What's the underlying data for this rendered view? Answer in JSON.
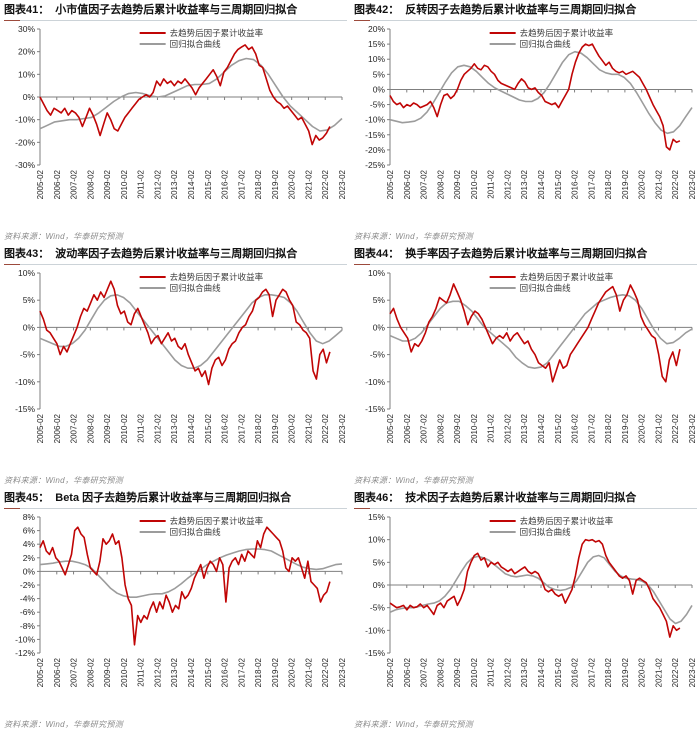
{
  "page": {
    "background": "#ffffff"
  },
  "colors": {
    "series_red": "#c00505",
    "fit_gray": "#9c9c9c",
    "axis_gray": "#7f7f7f",
    "tick_text": "#262626",
    "title_text": "#111111",
    "source_text": "#8a8a8a"
  },
  "legend": {
    "series_label": "去趋势后因子累计收益率",
    "fit_label": "回归拟合曲线"
  },
  "source_label": "资料来源：Wind，华泰研究预测",
  "x_labels": [
    "2005-02",
    "2006-02",
    "2007-02",
    "2008-02",
    "2009-02",
    "2010-02",
    "2011-02",
    "2012-02",
    "2013-02",
    "2014-02",
    "2015-02",
    "2016-02",
    "2017-02",
    "2018-02",
    "2019-02",
    "2020-02",
    "2021-02",
    "2022-02",
    "2023-02"
  ],
  "chart_data": [
    {
      "type": "line",
      "figure_label": "图表41：",
      "title": "小市值因子去趋势后累计收益率与三周期回归拟合",
      "ylim": [
        -30,
        30
      ],
      "yticks": [
        30,
        20,
        10,
        0,
        -10,
        -20,
        -30
      ],
      "x_range": [
        "2005-02",
        "2023-02"
      ],
      "grid": false,
      "legend_position": "top-center",
      "series": [
        {
          "name": "去趋势后因子累计收益率",
          "color_key": "series_red",
          "x_end": 0.96,
          "values": [
            0,
            -3,
            -6,
            -8,
            -5,
            -6,
            -7,
            -5,
            -8,
            -6,
            -7,
            -9,
            -13,
            -9,
            -5,
            -8,
            -12,
            -17,
            -12,
            -7,
            -10,
            -14,
            -15,
            -12,
            -9,
            -7,
            -5,
            -3,
            -1,
            0,
            1,
            0,
            2,
            7,
            5,
            8,
            6,
            7,
            5,
            7,
            6,
            8,
            6,
            4,
            1,
            4,
            6,
            8,
            10,
            12,
            9,
            5,
            11,
            13,
            16,
            19,
            21,
            22,
            23,
            21,
            22,
            19,
            14,
            13,
            8,
            3,
            0,
            -2,
            -3,
            -5,
            -4,
            -6,
            -8,
            -10,
            -9,
            -12,
            -15,
            -21,
            -17,
            -19,
            -18,
            -16,
            -13
          ]
        },
        {
          "name": "回归拟合曲线",
          "color_key": "fit_gray",
          "x_end": 1.0,
          "values": [
            -14,
            -12.5,
            -11,
            -10.5,
            -10,
            -10,
            -9.5,
            -9,
            -7,
            -4.5,
            -2,
            0,
            1.5,
            2,
            1.5,
            0.5,
            0,
            0.5,
            2,
            3.5,
            5,
            5.5,
            5.5,
            6,
            8,
            11,
            14,
            16,
            17,
            16.5,
            14,
            10,
            5,
            0,
            -4,
            -7,
            -10,
            -13,
            -15,
            -14.5,
            -12.5,
            -9.5
          ]
        }
      ]
    },
    {
      "type": "line",
      "figure_label": "图表42：",
      "title": "反转因子去趋势后累计收益率与三周期回归拟合",
      "ylim": [
        -25,
        20
      ],
      "yticks": [
        20,
        15,
        10,
        5,
        0,
        -5,
        -10,
        -15,
        -20,
        -25
      ],
      "x_range": [
        "2005-02",
        "2023-02"
      ],
      "grid": false,
      "legend_position": "top-center",
      "series": [
        {
          "name": "去趋势后因子累计收益率",
          "color_key": "series_red",
          "x_end": 0.96,
          "values": [
            -2,
            -4,
            -5,
            -4.5,
            -6,
            -5,
            -5.5,
            -4.5,
            -5,
            -6,
            -5.5,
            -5,
            -4,
            -6,
            -9,
            -5,
            -2,
            -1.5,
            -3,
            -2,
            0,
            3,
            5,
            6,
            7,
            8.5,
            7,
            6.5,
            8,
            7.5,
            6,
            5,
            3,
            2,
            1.5,
            1,
            0.5,
            0,
            2,
            3.5,
            2.5,
            0.5,
            0,
            0.5,
            -1,
            -2,
            -4,
            -4.5,
            -5,
            -4.5,
            -6,
            -4,
            -2,
            0,
            5,
            9,
            12,
            14,
            15,
            14.5,
            15,
            13,
            11,
            9.5,
            8,
            9,
            7,
            6,
            5.5,
            6,
            5,
            5.5,
            6,
            5,
            4,
            2,
            0,
            -2.5,
            -5,
            -7,
            -9,
            -12,
            -19,
            -20,
            -16.5,
            -17.5,
            -17
          ]
        },
        {
          "name": "回归拟合曲线",
          "color_key": "fit_gray",
          "x_end": 1.0,
          "values": [
            -10,
            -10.5,
            -11,
            -10.8,
            -10.5,
            -9.5,
            -7.5,
            -4.5,
            -1,
            2.5,
            5.5,
            7.5,
            8,
            7.5,
            6,
            4,
            2,
            0.5,
            -0.5,
            -1.5,
            -2.5,
            -3.5,
            -4,
            -4,
            -3,
            -1,
            2,
            5.5,
            9,
            11.5,
            12.5,
            12,
            10.5,
            8.5,
            6.5,
            5.5,
            5,
            5,
            4,
            2,
            -1,
            -4.5,
            -8,
            -11,
            -13.5,
            -14.5,
            -14,
            -12,
            -9,
            -6
          ]
        }
      ]
    },
    {
      "type": "line",
      "figure_label": "图表43：",
      "title": "波动率因子去趋势后累计收益率与三周期回归拟合",
      "ylim": [
        -15,
        10
      ],
      "yticks": [
        10,
        5,
        0,
        -5,
        -10,
        -15
      ],
      "x_range": [
        "2005-02",
        "2023-02"
      ],
      "grid": false,
      "legend_position": "top-center",
      "series": [
        {
          "name": "去趋势后因子累计收益率",
          "color_key": "series_red",
          "x_end": 0.96,
          "values": [
            3,
            1.5,
            -0.5,
            -1,
            -2,
            -3,
            -5,
            -3.5,
            -4.5,
            -3,
            -1.5,
            0,
            2,
            3.5,
            3,
            4.5,
            6,
            5,
            6.5,
            5.5,
            7,
            8.5,
            7,
            4,
            2.5,
            3,
            1,
            0.5,
            2.5,
            3.5,
            2,
            0.5,
            -1,
            -3,
            -2,
            -1.5,
            -3,
            -2,
            -1,
            -2.5,
            -2,
            -3.5,
            -4,
            -3,
            -5,
            -6.5,
            -8,
            -7.5,
            -9,
            -8,
            -10.5,
            -7.5,
            -6,
            -5.5,
            -7,
            -6,
            -4,
            -3,
            -2.5,
            -1,
            0,
            0.5,
            2,
            3,
            5,
            5.5,
            6.5,
            7,
            6,
            2,
            5,
            6,
            7,
            6.5,
            5,
            4,
            1,
            0.5,
            -0.5,
            -1,
            -2,
            -8,
            -9.5,
            -5,
            -4,
            -6.5,
            -4.5
          ]
        },
        {
          "name": "回归拟合曲线",
          "color_key": "fit_gray",
          "x_end": 1.0,
          "values": [
            -2,
            -2.5,
            -3,
            -3.5,
            -3.5,
            -3,
            -2,
            -0.5,
            1.5,
            3.5,
            5,
            5.8,
            6,
            5.5,
            4.5,
            3,
            1.5,
            0,
            -1.5,
            -3,
            -4.5,
            -6,
            -7,
            -7.5,
            -7.5,
            -7,
            -6,
            -4.5,
            -3,
            -1.5,
            0,
            1.5,
            3,
            4.5,
            5.5,
            6,
            6,
            5.8,
            5.5,
            4.5,
            3,
            1,
            -1,
            -2.5,
            -3,
            -2.5,
            -1.5,
            -0.5
          ]
        }
      ]
    },
    {
      "type": "line",
      "figure_label": "图表44：",
      "title": "换手率因子去趋势后累计收益率与三周期回归拟合",
      "ylim": [
        -15,
        10
      ],
      "yticks": [
        10,
        5,
        0,
        -5,
        -10,
        -15
      ],
      "x_range": [
        "2005-02",
        "2023-02"
      ],
      "grid": false,
      "legend_position": "top-center",
      "series": [
        {
          "name": "去趋势后因子累计收益率",
          "color_key": "series_red",
          "x_end": 0.96,
          "values": [
            2.5,
            3.5,
            1.5,
            0,
            -1,
            -2,
            -4.5,
            -3,
            -3.5,
            -2.5,
            -1,
            1,
            2,
            3.5,
            5.5,
            5,
            4.5,
            6,
            8,
            6.5,
            5,
            3,
            0.5,
            2,
            3,
            2.5,
            1.5,
            0,
            -1.5,
            -3,
            -2,
            -1.5,
            -2,
            -1,
            -2.5,
            -1.5,
            -1,
            -2,
            -3,
            -2.5,
            -4,
            -5,
            -6.5,
            -7,
            -7.5,
            -6.5,
            -10,
            -8,
            -6,
            -7.5,
            -7,
            -5,
            -4,
            -3,
            -2,
            -1,
            0,
            1.5,
            3,
            4.5,
            5.5,
            6.5,
            7,
            7.5,
            6,
            3,
            5,
            6,
            7.8,
            6.5,
            5,
            2,
            0.5,
            -0.5,
            -1.5,
            -2,
            -5,
            -9,
            -10,
            -6,
            -4.5,
            -7,
            -4
          ]
        },
        {
          "name": "回归拟合曲线",
          "color_key": "fit_gray",
          "x_end": 1.0,
          "values": [
            -1.5,
            -2,
            -2.5,
            -2.5,
            -2,
            -1,
            0.5,
            2,
            3.5,
            4.5,
            4.8,
            4.8,
            4,
            3,
            1.5,
            0,
            -1,
            -2,
            -3,
            -4,
            -5.5,
            -6.5,
            -7.3,
            -7.5,
            -7.3,
            -6.5,
            -5,
            -3.5,
            -2,
            -0.5,
            1,
            2.5,
            3.5,
            4.5,
            5,
            5.5,
            5.8,
            6,
            5.8,
            5,
            3.5,
            1.5,
            -0.5,
            -2,
            -3,
            -2.8,
            -2,
            -1,
            -0.3
          ]
        }
      ]
    },
    {
      "type": "line",
      "figure_label": "图表45：",
      "title": "Beta 因子去趋势后累计收益率与三周期回归拟合",
      "ylim": [
        -12,
        8
      ],
      "yticks": [
        8,
        6,
        4,
        2,
        0,
        -2,
        -4,
        -6,
        -8,
        -10,
        -12
      ],
      "x_range": [
        "2005-02",
        "2023-02"
      ],
      "grid": false,
      "legend_position": "top-center",
      "series": [
        {
          "name": "去趋势后因子累计收益率",
          "color_key": "series_red",
          "x_end": 0.96,
          "values": [
            3.5,
            4.5,
            3,
            2.5,
            3.5,
            2,
            1.5,
            0.5,
            -0.5,
            1,
            2.5,
            6,
            6.5,
            5.5,
            5,
            2.5,
            0.5,
            0,
            -0.5,
            1.5,
            4.8,
            4,
            4.5,
            5.5,
            4,
            4.5,
            2,
            -2,
            -4,
            -5,
            -10.8,
            -6.5,
            -7.5,
            -6.5,
            -7,
            -5.5,
            -4.5,
            -6,
            -4.5,
            -5.5,
            -3.5,
            -4.5,
            -6,
            -5,
            -5.5,
            -3,
            -4,
            -3.5,
            -2.5,
            -1,
            0,
            1,
            -1,
            0.5,
            1.5,
            1,
            0,
            2,
            1,
            -4.5,
            0.5,
            1.5,
            2,
            1,
            2.5,
            1.5,
            3,
            2.5,
            2,
            4.5,
            3.5,
            5.5,
            6.5,
            6,
            5.5,
            5,
            4.5,
            3,
            0.5,
            0,
            2,
            1.5,
            2,
            0.5,
            -1,
            1.5,
            -1.5,
            -2,
            -2.5,
            -4.5,
            -3.5,
            -3,
            -1.5
          ]
        },
        {
          "name": "回归拟合曲线",
          "color_key": "fit_gray",
          "x_end": 1.0,
          "values": [
            1,
            1.1,
            1.2,
            1.4,
            1.5,
            1.5,
            1.3,
            1,
            0.5,
            -0.5,
            -1.5,
            -2.5,
            -3.2,
            -3.6,
            -3.8,
            -3.8,
            -3.6,
            -3.4,
            -3.3,
            -3.3,
            -3,
            -2.5,
            -1.8,
            -1,
            -0.3,
            0.3,
            1,
            1.5,
            2,
            2.4,
            2.7,
            3,
            3.2,
            3.3,
            3.3,
            3.2,
            3,
            2.5,
            2,
            1.5,
            1,
            0.6,
            0.4,
            0.3,
            0.4,
            0.7,
            1,
            1.1
          ]
        }
      ]
    },
    {
      "type": "line",
      "figure_label": "图表46：",
      "title": "技术因子去趋势后累计收益率与三周期回归拟合",
      "ylim": [
        -15,
        15
      ],
      "yticks": [
        15,
        10,
        5,
        0,
        -5,
        -10,
        -15
      ],
      "x_range": [
        "2005-02",
        "2023-02"
      ],
      "grid": false,
      "legend_position": "top-center",
      "series": [
        {
          "name": "去趋势后因子累计收益率",
          "color_key": "series_red",
          "x_end": 0.96,
          "values": [
            -4,
            -4.5,
            -5,
            -4.8,
            -4.5,
            -5.5,
            -4.5,
            -5,
            -4.8,
            -4.2,
            -5,
            -4.5,
            -5.5,
            -6.5,
            -4.5,
            -4,
            -5,
            -3.5,
            -3,
            -2.5,
            -4.5,
            -3,
            -1,
            3,
            5,
            6.5,
            7,
            5.5,
            6,
            4,
            5,
            4.5,
            5,
            4,
            3.5,
            3,
            3.5,
            2.5,
            3,
            3.5,
            4,
            3,
            2.5,
            3,
            2.5,
            1,
            -1,
            -1.5,
            -1,
            -2,
            -2.5,
            -2,
            -4,
            -2.5,
            -1,
            2,
            6,
            9,
            10,
            9.8,
            10,
            9.5,
            9.8,
            9,
            6.5,
            5,
            4,
            3,
            2,
            1.5,
            2,
            1,
            -2,
            1,
            1.5,
            1,
            0.5,
            -1,
            -3,
            -4,
            -5,
            -6.5,
            -8,
            -11.5,
            -9,
            -10,
            -9.5
          ]
        },
        {
          "name": "回归拟合曲线",
          "color_key": "fit_gray",
          "x_end": 1.0,
          "values": [
            -6,
            -5.5,
            -5.2,
            -5,
            -5,
            -4.8,
            -4.5,
            -4.2,
            -4,
            -3.5,
            -2.5,
            -1,
            1,
            3,
            4.8,
            6,
            6.3,
            6,
            5.5,
            4.5,
            3.5,
            2.5,
            2,
            1.8,
            2,
            2.2,
            2,
            1.5,
            0.5,
            -0.5,
            -1,
            -1.2,
            -1,
            -0.5,
            1,
            3,
            5,
            6.2,
            6.5,
            6,
            4.5,
            3,
            2,
            1.5,
            1.3,
            1.2,
            0.8,
            0,
            -1.5,
            -3.5,
            -5.5,
            -7.5,
            -8.5,
            -8,
            -6.5,
            -4.5
          ]
        }
      ]
    }
  ]
}
